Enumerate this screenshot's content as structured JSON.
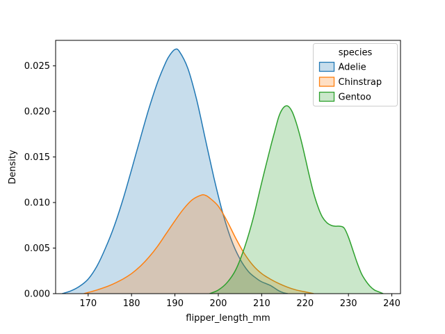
{
  "figure": {
    "background": "#ffffff",
    "text_color": "#000000",
    "spine_color": "#000000",
    "legend_border_color": "#cccccc"
  },
  "chart_data": {
    "type": "area",
    "kind": "kde-density",
    "title": "",
    "xlabel": "flipper_length_mm",
    "ylabel": "Density",
    "xlim": [
      162.5,
      242.0
    ],
    "ylim": [
      0,
      0.0278
    ],
    "xticks": [
      170,
      180,
      190,
      200,
      210,
      220,
      230,
      240
    ],
    "xtick_labels": [
      "170",
      "180",
      "190",
      "200",
      "210",
      "220",
      "230",
      "240"
    ],
    "yticks": [
      0.0,
      0.005,
      0.01,
      0.015,
      0.02,
      0.025
    ],
    "ytick_labels": [
      "0.000",
      "0.005",
      "0.010",
      "0.015",
      "0.020",
      "0.025"
    ],
    "grid": false,
    "fill_alpha": 0.25,
    "legend": {
      "title": "species",
      "position": "upper right",
      "entries": [
        {
          "label": "Adelie",
          "color": "#1f77b4"
        },
        {
          "label": "Chinstrap",
          "color": "#ff7f0e"
        },
        {
          "label": "Gentoo",
          "color": "#2ca02c"
        }
      ]
    },
    "series": [
      {
        "name": "Adelie",
        "color": "#1f77b4",
        "peak_x": 190,
        "peak_density": 0.0268,
        "points": [
          [
            164,
            0.0
          ],
          [
            166,
            0.0003
          ],
          [
            168,
            0.0008
          ],
          [
            170,
            0.0016
          ],
          [
            172,
            0.003
          ],
          [
            174,
            0.005
          ],
          [
            176,
            0.0074
          ],
          [
            178,
            0.0103
          ],
          [
            180,
            0.0136
          ],
          [
            182,
            0.017
          ],
          [
            184,
            0.0203
          ],
          [
            186,
            0.0232
          ],
          [
            188,
            0.0255
          ],
          [
            189,
            0.0263
          ],
          [
            190,
            0.0268
          ],
          [
            191,
            0.0266
          ],
          [
            193,
            0.0247
          ],
          [
            195,
            0.0213
          ],
          [
            197,
            0.017
          ],
          [
            199,
            0.0127
          ],
          [
            201,
            0.0089
          ],
          [
            203,
            0.0059
          ],
          [
            205,
            0.0038
          ],
          [
            207,
            0.0024
          ],
          [
            209,
            0.0016
          ],
          [
            210,
            0.0013
          ],
          [
            211,
            0.0011
          ],
          [
            212,
            0.0009
          ],
          [
            213,
            0.0006
          ],
          [
            214,
            0.0003
          ],
          [
            215,
            0.0001
          ],
          [
            216,
            0.0
          ]
        ]
      },
      {
        "name": "Chinstrap",
        "color": "#ff7f0e",
        "peak_x": 196,
        "peak_density": 0.0108,
        "points": [
          [
            169,
            0.0
          ],
          [
            172,
            0.0004
          ],
          [
            175,
            0.0009
          ],
          [
            178,
            0.0016
          ],
          [
            180,
            0.0022
          ],
          [
            182,
            0.003
          ],
          [
            184,
            0.004
          ],
          [
            186,
            0.0052
          ],
          [
            188,
            0.0066
          ],
          [
            190,
            0.008
          ],
          [
            192,
            0.0093
          ],
          [
            194,
            0.0103
          ],
          [
            196,
            0.0108
          ],
          [
            197,
            0.0108
          ],
          [
            198,
            0.0105
          ],
          [
            200,
            0.0096
          ],
          [
            202,
            0.008
          ],
          [
            204,
            0.0061
          ],
          [
            206,
            0.0044
          ],
          [
            208,
            0.0031
          ],
          [
            210,
            0.0022
          ],
          [
            212,
            0.0016
          ],
          [
            214,
            0.0011
          ],
          [
            216,
            0.0007
          ],
          [
            218,
            0.0004
          ],
          [
            220,
            0.0002
          ],
          [
            222,
            0.0
          ]
        ]
      },
      {
        "name": "Gentoo",
        "color": "#2ca02c",
        "peak_x": 215.5,
        "peak_density": 0.0206,
        "points": [
          [
            198,
            0.0
          ],
          [
            200,
            0.0004
          ],
          [
            202,
            0.0012
          ],
          [
            204,
            0.0026
          ],
          [
            206,
            0.005
          ],
          [
            208,
            0.0082
          ],
          [
            210,
            0.0122
          ],
          [
            212,
            0.016
          ],
          [
            213,
            0.0178
          ],
          [
            214,
            0.0195
          ],
          [
            215,
            0.0204
          ],
          [
            216,
            0.0206
          ],
          [
            217,
            0.02
          ],
          [
            218,
            0.0187
          ],
          [
            219,
            0.017
          ],
          [
            220,
            0.015
          ],
          [
            221,
            0.0129
          ],
          [
            222,
            0.011
          ],
          [
            223,
            0.0095
          ],
          [
            224,
            0.0084
          ],
          [
            225,
            0.0078
          ],
          [
            226,
            0.0075
          ],
          [
            227,
            0.0074
          ],
          [
            228,
            0.0074
          ],
          [
            229,
            0.0072
          ],
          [
            230,
            0.0062
          ],
          [
            231,
            0.0048
          ],
          [
            232,
            0.0034
          ],
          [
            233,
            0.0022
          ],
          [
            234,
            0.0014
          ],
          [
            235,
            0.0008
          ],
          [
            236,
            0.0004
          ],
          [
            237,
            0.0002
          ],
          [
            238,
            0.0
          ]
        ]
      }
    ]
  }
}
